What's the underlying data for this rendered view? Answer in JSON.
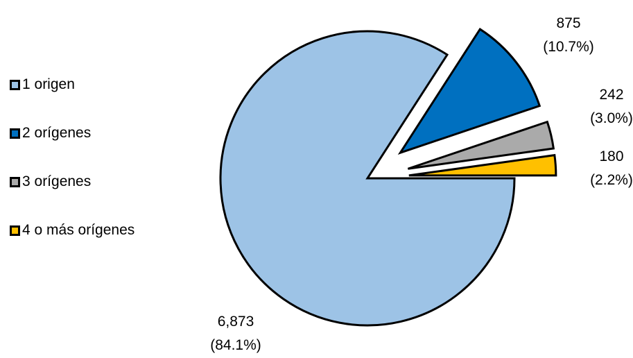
{
  "chart_data": {
    "type": "pie",
    "categories": [
      "1 origen",
      "2 orígenes",
      "3 orígenes",
      "4 o más orígenes"
    ],
    "values": [
      6873,
      875,
      242,
      180
    ],
    "percent_labels": [
      "(84.1%)",
      "(10.7%)",
      "(3.0%)",
      "(2.2%)"
    ],
    "value_labels": [
      "6,873",
      "875",
      "242",
      "180"
    ],
    "colors": [
      "#9dc3e6",
      "#0070c0",
      "#aaaaaa",
      "#ffc000"
    ],
    "legend_position": "left",
    "exploded": [
      false,
      true,
      true,
      true
    ]
  }
}
